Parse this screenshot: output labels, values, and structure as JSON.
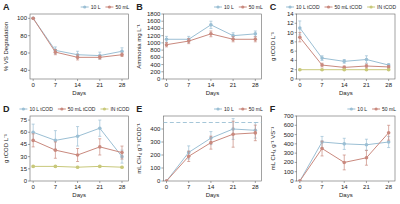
{
  "chart_data": [
    {
      "type": "line",
      "title": "A",
      "x_label": "Days",
      "y_label": "% VS Degradation",
      "x": [
        0,
        7,
        14,
        21,
        28
      ],
      "xlim": [
        -1,
        30
      ],
      "xticks": [
        0,
        7,
        14,
        21,
        28
      ],
      "ylim": [
        30,
        105
      ],
      "yticks": [
        40,
        60,
        80,
        100
      ],
      "legend": "top",
      "marker": "circle",
      "series": [
        {
          "name": "10 L",
          "color": "#9bbfd4",
          "values": [
            100,
            63,
            58,
            57,
            62
          ],
          "errors": [
            0,
            4,
            4,
            4,
            4
          ]
        },
        {
          "name": "50 mL",
          "color": "#c9897e",
          "values": [
            100,
            61,
            55,
            55,
            58
          ],
          "errors": [
            0,
            3,
            3,
            2,
            2
          ]
        }
      ]
    },
    {
      "type": "line",
      "title": "B",
      "x_label": "Days",
      "y_label": "Ammonia mg L⁻¹",
      "x": [
        0,
        7,
        14,
        21,
        28
      ],
      "xlim": [
        -1,
        30
      ],
      "xticks": [
        0,
        7,
        14,
        21,
        28
      ],
      "ylim": [
        0,
        1800
      ],
      "yticks": [
        0,
        200,
        400,
        600,
        800,
        1000,
        1200,
        1400,
        1600,
        1800
      ],
      "legend": "top",
      "marker": "circle",
      "series": [
        {
          "name": "10 L",
          "color": "#9bbfd4",
          "values": [
            1100,
            1100,
            1500,
            1200,
            1250
          ],
          "errors": [
            80,
            80,
            100,
            80,
            80
          ]
        },
        {
          "name": "50 mL",
          "color": "#c9897e",
          "values": [
            950,
            1050,
            1250,
            1100,
            1100
          ],
          "errors": [
            60,
            70,
            80,
            70,
            70
          ]
        }
      ]
    },
    {
      "type": "line",
      "title": "C",
      "x_label": "Days",
      "y_label": "g tCOD L⁻¹",
      "x": [
        0,
        7,
        14,
        21,
        28
      ],
      "xlim": [
        -1,
        30
      ],
      "xticks": [
        0,
        7,
        14,
        21,
        28
      ],
      "ylim": [
        0,
        14
      ],
      "yticks": [
        0,
        2,
        4,
        6,
        8,
        10,
        12,
        14
      ],
      "legend": "top",
      "marker": "circle",
      "series": [
        {
          "name": "10 L tCOD",
          "color": "#9bbfd4",
          "values": [
            11,
            4.5,
            3.8,
            4.2,
            3.0
          ],
          "errors": [
            1.5,
            0.5,
            0.4,
            0.8,
            0.3
          ]
        },
        {
          "name": "50 mL tCOD",
          "color": "#c9897e",
          "values": [
            9,
            3.0,
            2.5,
            2.8,
            2.6
          ],
          "errors": [
            1.0,
            0.4,
            0.3,
            0.4,
            0.3
          ]
        },
        {
          "name": "IN tCOD",
          "color": "#c8c87a",
          "values": [
            2,
            2,
            2,
            2,
            2
          ],
          "errors": [
            0.1,
            0.1,
            0.1,
            0.1,
            0.1
          ]
        }
      ]
    },
    {
      "type": "line",
      "title": "D",
      "x_label": "Days",
      "y_label": "g tCOD L⁻¹",
      "x": [
        0,
        7,
        14,
        21,
        28
      ],
      "xlim": [
        -1,
        30
      ],
      "xticks": [
        0,
        7,
        14,
        21,
        28
      ],
      "ylim": [
        0,
        80
      ],
      "yticks": [
        0,
        15,
        30,
        45,
        60,
        75
      ],
      "legend": "top",
      "marker": "circle",
      "series": [
        {
          "name": "10 L tCOD",
          "color": "#9bbfd4",
          "values": [
            60,
            50,
            55,
            65,
            30
          ],
          "errors": [
            10,
            12,
            12,
            10,
            8
          ]
        },
        {
          "name": "50 mL tCOD",
          "color": "#c9897e",
          "values": [
            50,
            38,
            32,
            42,
            35
          ],
          "errors": [
            8,
            10,
            8,
            10,
            8
          ]
        },
        {
          "name": "IN tCOD",
          "color": "#c8c87a",
          "values": [
            18,
            18,
            17,
            18,
            17
          ],
          "errors": [
            1,
            1,
            1,
            1,
            1
          ]
        }
      ]
    },
    {
      "type": "line",
      "title": "E",
      "x_label": "Days",
      "y_label": "mL CH₄ g⁻¹ tCOD⁻¹",
      "x": [
        0,
        7,
        14,
        21,
        28
      ],
      "xlim": [
        -1,
        30
      ],
      "xticks": [
        0,
        7,
        14,
        21,
        28
      ],
      "ylim": [
        0,
        500
      ],
      "yticks": [
        0,
        100,
        200,
        300,
        400
      ],
      "legend": "top",
      "marker": "circle",
      "hline": {
        "y": 450,
        "color": "#9bbfd4",
        "line_style": "dashed"
      },
      "series": [
        {
          "name": "10 L",
          "color": "#9bbfd4",
          "values": [
            0,
            220,
            330,
            400,
            390
          ],
          "errors": [
            0,
            50,
            50,
            80,
            60
          ]
        },
        {
          "name": "50 mL",
          "color": "#c9897e",
          "values": [
            0,
            190,
            295,
            360,
            370
          ],
          "errors": [
            0,
            40,
            50,
            100,
            60
          ]
        }
      ]
    },
    {
      "type": "line",
      "title": "F",
      "x_label": "Days",
      "y_label": "mL CH₄ g⁻¹ VS⁻¹",
      "x": [
        0,
        7,
        14,
        21,
        28
      ],
      "xlim": [
        -1,
        30
      ],
      "xticks": [
        0,
        7,
        14,
        21,
        28
      ],
      "ylim": [
        0,
        700
      ],
      "yticks": [
        0,
        100,
        200,
        300,
        400,
        500,
        600,
        700
      ],
      "legend": "top",
      "marker": "circle",
      "series": [
        {
          "name": "10 L",
          "color": "#9bbfd4",
          "values": [
            0,
            420,
            400,
            390,
            420
          ],
          "errors": [
            0,
            60,
            60,
            60,
            60
          ]
        },
        {
          "name": "50 mL",
          "color": "#c9897e",
          "values": [
            0,
            350,
            200,
            250,
            520
          ],
          "errors": [
            0,
            80,
            80,
            80,
            80
          ]
        }
      ]
    }
  ]
}
